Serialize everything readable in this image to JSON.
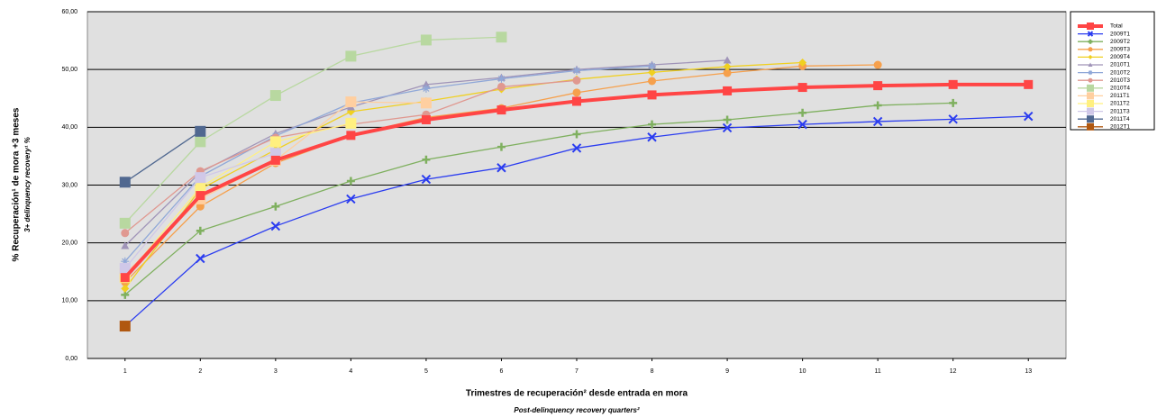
{
  "chart_data": {
    "type": "line",
    "y_label": "% Recuperación¹ de mora +3 meses",
    "y_label_en": "3+ delinquency recovery¹ %",
    "x_label": "Trimestres de recuperación² desde entrada en mora",
    "x_label_en": "Post-delinquency recovery quarters²",
    "x": [
      1,
      2,
      3,
      4,
      5,
      6,
      7,
      8,
      9,
      10,
      11,
      12,
      13
    ],
    "xlim": [
      0.5,
      13.5
    ],
    "xticks": [
      1,
      2,
      3,
      4,
      5,
      6,
      7,
      8,
      9,
      10,
      11,
      12,
      13
    ],
    "ylim": [
      0,
      60
    ],
    "yticks": [
      {
        "value": 0,
        "label": "0,00"
      },
      {
        "value": 10,
        "label": "10,00"
      },
      {
        "value": 20,
        "label": "20,00"
      },
      {
        "value": 30,
        "label": "30,00"
      },
      {
        "value": 40,
        "label": "40,00"
      },
      {
        "value": 50,
        "label": "50,00"
      },
      {
        "value": 60,
        "label": "60,00"
      }
    ],
    "grid": true,
    "legend": "right",
    "series": [
      {
        "name": "Total",
        "color": "#ff4545",
        "marker": "square",
        "width": 4,
        "values": [
          14,
          28.2,
          34.3,
          38.6,
          41.3,
          43,
          44.5,
          45.6,
          46.3,
          46.9,
          47.2,
          47.4,
          47.4
        ]
      },
      {
        "name": "2009T1",
        "color": "#2a3cf0",
        "marker": "x",
        "width": 1.3,
        "values": [
          5.6,
          17.3,
          22.9,
          27.6,
          31,
          33,
          36.4,
          38.3,
          39.9,
          40.5,
          41,
          41.4,
          41.9
        ]
      },
      {
        "name": "2009T2",
        "color": "#7fb05f",
        "marker": "plus",
        "width": 1.3,
        "values": [
          11,
          22.1,
          26.3,
          30.7,
          34.4,
          36.6,
          38.8,
          40.5,
          41.3,
          42.5,
          43.8,
          44.2,
          null
        ]
      },
      {
        "name": "2009T3",
        "color": "#f6a04c",
        "marker": "circle",
        "width": 1.3,
        "values": [
          13.2,
          26.3,
          33.8,
          38.6,
          41.7,
          43.3,
          46,
          48,
          49.4,
          50.6,
          50.8,
          null,
          null
        ]
      },
      {
        "name": "2009T4",
        "color": "#f0d020",
        "marker": "diamond",
        "width": 1.3,
        "values": [
          12.1,
          29.3,
          36.1,
          42.7,
          44.5,
          46.6,
          48.3,
          49.5,
          50.5,
          51.2,
          null,
          null,
          null
        ]
      },
      {
        "name": "2010T1",
        "color": "#a094b8",
        "marker": "triangle",
        "width": 1.3,
        "values": [
          19.5,
          32.2,
          38.9,
          43.5,
          47.4,
          48.6,
          50,
          50.8,
          51.6,
          null,
          null,
          null,
          null
        ]
      },
      {
        "name": "2010T2",
        "color": "#90a8d8",
        "marker": "star",
        "width": 1.3,
        "values": [
          16.8,
          31.5,
          38.5,
          44.2,
          46.7,
          48.4,
          49.8,
          50.6,
          null,
          null,
          null,
          null,
          null
        ]
      },
      {
        "name": "2010T3",
        "color": "#e09890",
        "marker": "circle",
        "width": 1.3,
        "values": [
          21.7,
          32.4,
          38.2,
          40.5,
          42.2,
          47,
          48.1,
          null,
          null,
          null,
          null,
          null,
          null
        ]
      },
      {
        "name": "2010T4",
        "color": "#b8d8a0",
        "marker": "square",
        "width": 1.3,
        "values": [
          23.4,
          37.5,
          45.5,
          52.3,
          55.1,
          55.6,
          null,
          null,
          null,
          null,
          null,
          null,
          null
        ]
      },
      {
        "name": "2011T1",
        "color": "#ffcfa0",
        "marker": "square",
        "width": 1.3,
        "values": [
          14.6,
          27.6,
          34.3,
          44.4,
          44.2,
          null,
          null,
          null,
          null,
          null,
          null,
          null,
          null
        ]
      },
      {
        "name": "2011T2",
        "color": "#fff080",
        "marker": "square",
        "width": 1.3,
        "values": [
          14,
          29.6,
          37.5,
          40.7,
          null,
          null,
          null,
          null,
          null,
          null,
          null,
          null,
          null
        ]
      },
      {
        "name": "2011T3",
        "color": "#d0c8e8",
        "marker": "square",
        "width": 1.3,
        "values": [
          15.6,
          31.3,
          35.5,
          null,
          null,
          null,
          null,
          null,
          null,
          null,
          null,
          null,
          null
        ]
      },
      {
        "name": "2011T4",
        "color": "#506890",
        "marker": "square",
        "width": 1.3,
        "values": [
          30.5,
          39.3,
          null,
          null,
          null,
          null,
          null,
          null,
          null,
          null,
          null,
          null,
          null
        ]
      },
      {
        "name": "2012T1",
        "color": "#b05810",
        "marker": "square",
        "width": 1.3,
        "values": [
          5.6,
          null,
          null,
          null,
          null,
          null,
          null,
          null,
          null,
          null,
          null,
          null,
          null
        ]
      }
    ]
  }
}
